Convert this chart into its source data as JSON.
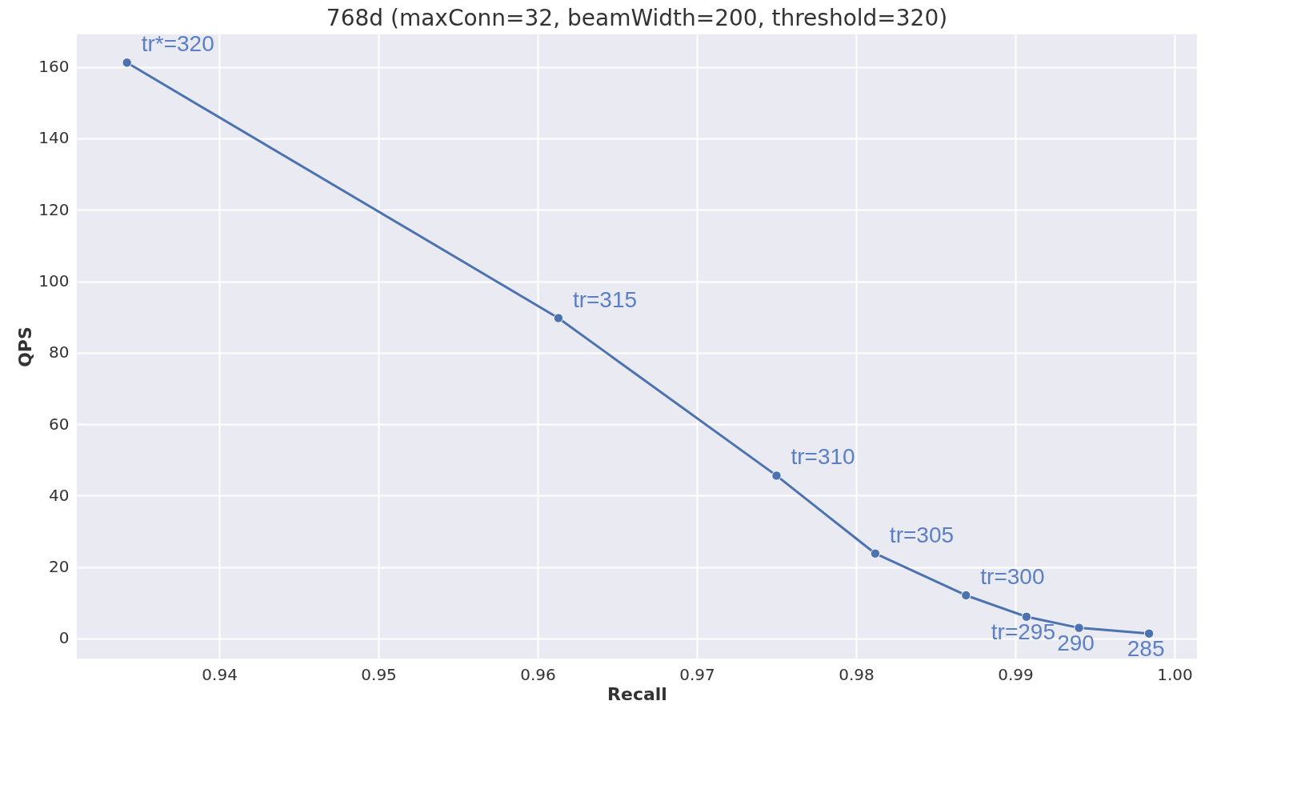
{
  "chart_data": {
    "type": "line",
    "title": "768d (maxConn=32, beamWidth=200, threshold=320)",
    "xlabel": "Recall",
    "ylabel": "QPS",
    "x": [
      0.9342,
      0.9613,
      0.975,
      0.9812,
      0.9869,
      0.9907,
      0.994,
      0.9984
    ],
    "series": [
      {
        "color": "#4c72b0",
        "values": [
          161.2,
          89.7,
          45.6,
          23.8,
          12.1,
          6.1,
          3.0,
          1.4
        ]
      }
    ],
    "xlim": [
      0.93105,
      1.00141
    ],
    "xticks": [
      {
        "value": 0.94,
        "label": "0.94"
      },
      {
        "value": 0.95,
        "label": "0.95"
      },
      {
        "value": 0.96,
        "label": "0.96"
      },
      {
        "value": 0.97,
        "label": "0.97"
      },
      {
        "value": 0.98,
        "label": "0.98"
      },
      {
        "value": 0.99,
        "label": "0.99"
      },
      {
        "value": 1.0,
        "label": "1.00"
      }
    ],
    "ylim": [
      -5.6,
      169.1
    ],
    "yticks": [
      0,
      20,
      40,
      60,
      80,
      100,
      120,
      140,
      160
    ],
    "grid": true,
    "marker": "circle",
    "line_style": "solid",
    "annotations": [
      {
        "text": "tr*=320",
        "x": 0.9342,
        "y": 161.2
      },
      {
        "text": "tr=315",
        "x": 0.9613,
        "y": 89.7
      },
      {
        "text": "tr=310",
        "x": 0.975,
        "y": 45.6
      },
      {
        "text": "tr=305",
        "x": 0.9812,
        "y": 23.8
      },
      {
        "text": "tr=300",
        "x": 0.9869,
        "y": 12.1
      },
      {
        "text": "tr=295",
        "x": 0.9907,
        "y": 6.1
      },
      {
        "text": "290",
        "x": 0.994,
        "y": 3.0
      },
      {
        "text": "285",
        "x": 0.9984,
        "y": 1.4
      }
    ]
  }
}
